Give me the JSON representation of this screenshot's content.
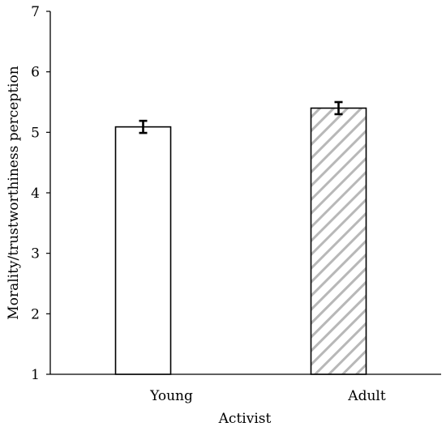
{
  "chart_data": {
    "type": "bar",
    "title": "",
    "xlabel": "Activist",
    "ylabel": "Morality/trustworthiness perception",
    "categories": [
      "Young",
      "Adult"
    ],
    "values": [
      5.09,
      5.4
    ],
    "error": [
      0.1,
      0.1
    ],
    "ylim": [
      1,
      7
    ],
    "yticks": [
      1,
      2,
      3,
      4,
      5,
      6,
      7
    ],
    "grid": false,
    "legend": "none",
    "bar_styles": [
      "solid-white",
      "diagonal-hatch-gray"
    ],
    "colors": {
      "bar_outline": "#000000",
      "bar_fill": "#ffffff",
      "hatch": "#b8b8b8",
      "axis": "#000000"
    }
  }
}
